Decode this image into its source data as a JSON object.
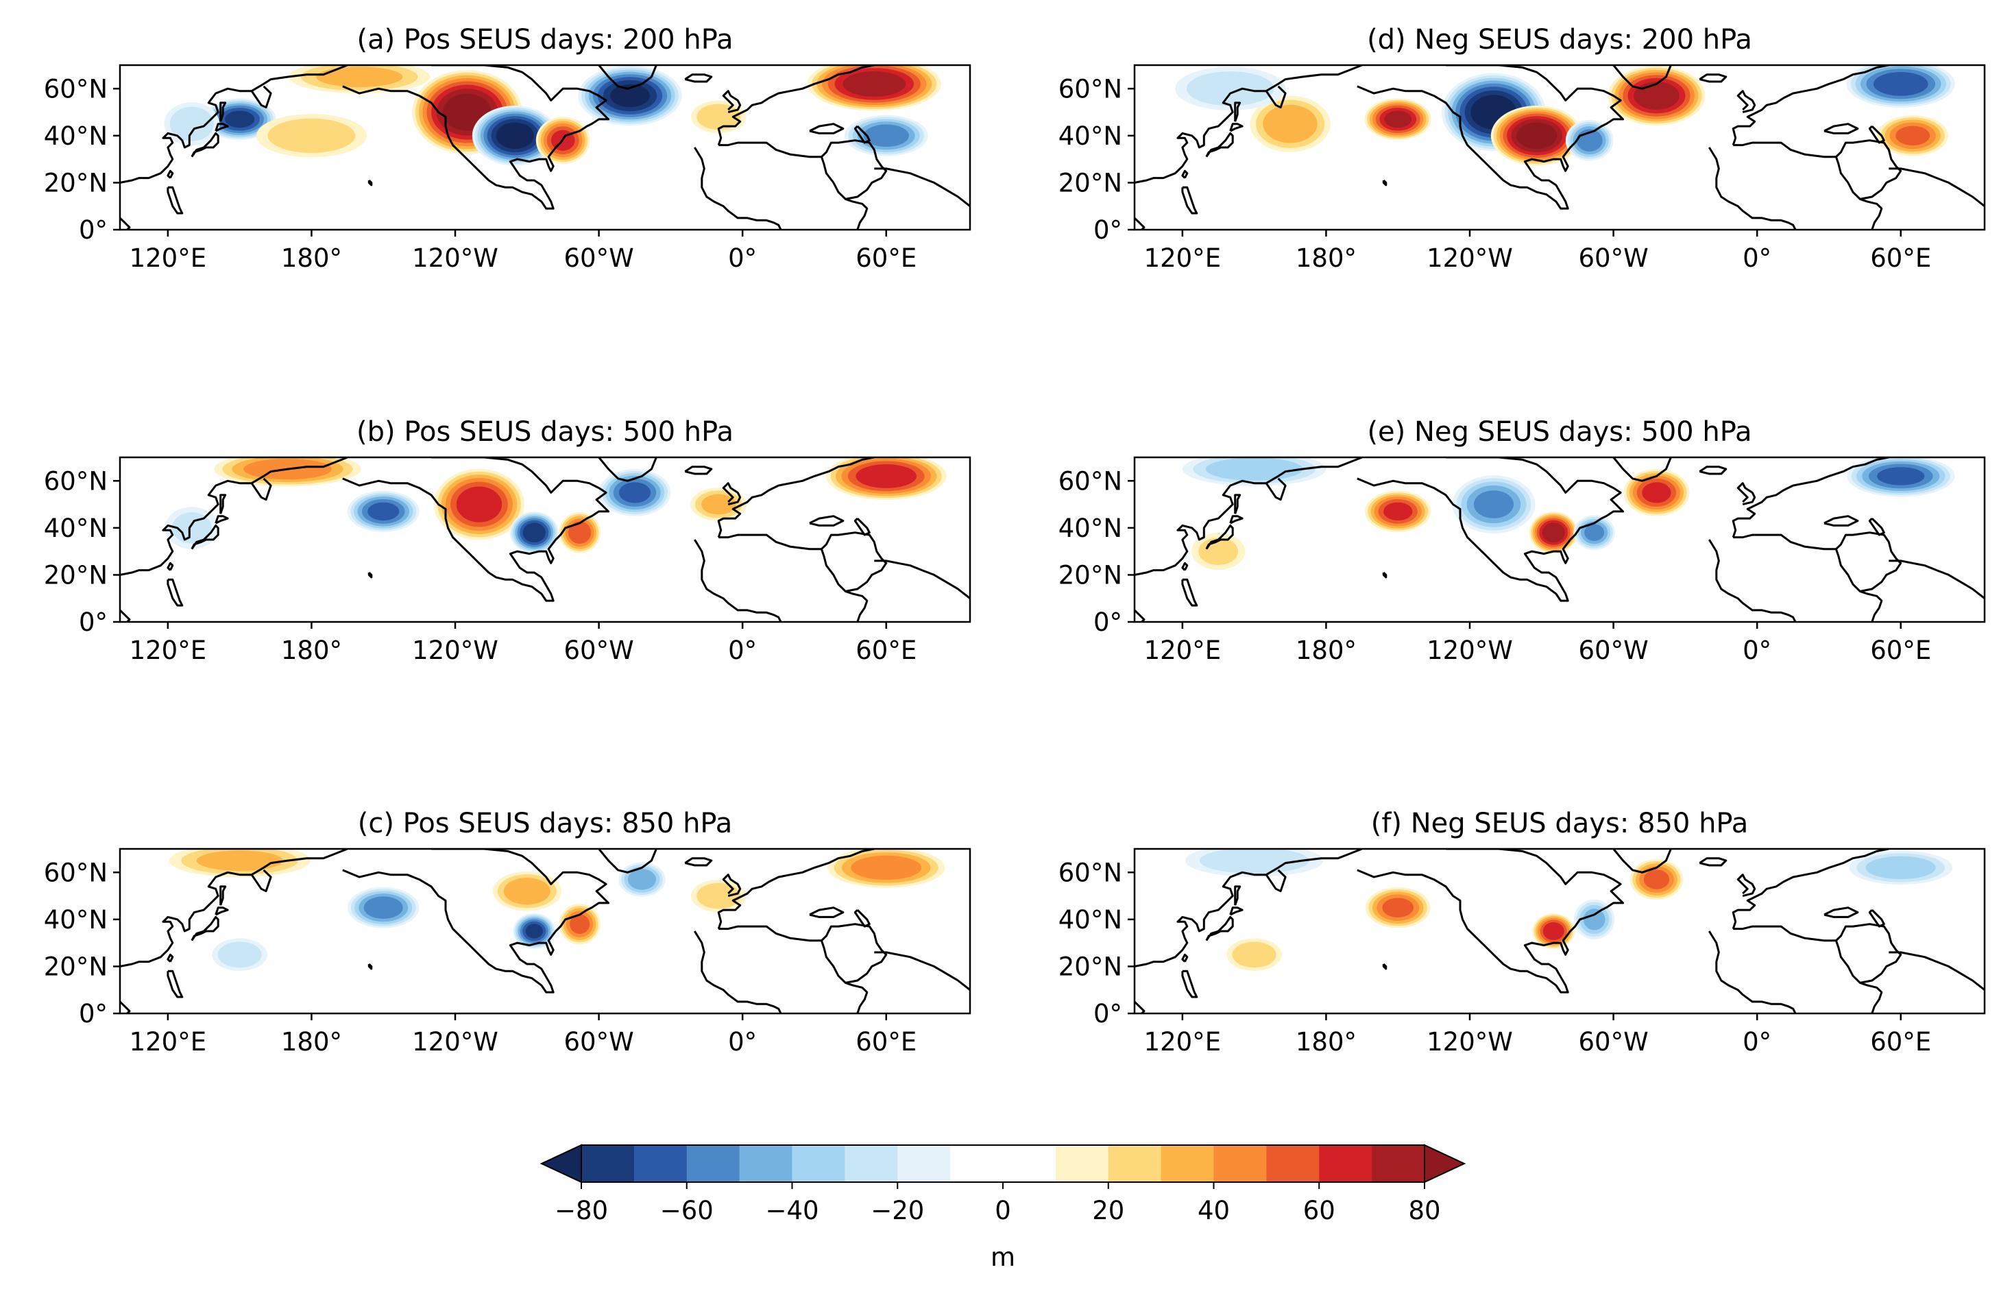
{
  "chart_data": {
    "type": "heatmap",
    "description_units": "m",
    "shared_axes": {
      "x_ticks": [
        "120°E",
        "180°",
        "120°W",
        "60°W",
        "0°",
        "60°E"
      ],
      "x_tick_lon": [
        120,
        180,
        240,
        300,
        360,
        420
      ],
      "y_ticks": [
        "0°",
        "20°N",
        "40°N",
        "60°N"
      ],
      "y_tick_lat": [
        0,
        20,
        40,
        60
      ],
      "lon_range": [
        100,
        455
      ],
      "lat_range": [
        0,
        70
      ]
    },
    "panels": [
      {
        "id": "a",
        "title": "(a) Pos SEUS days: 200 hPa",
        "anomalies": [
          {
            "lon": 150,
            "lat": 47,
            "value": -70,
            "rx": 12,
            "ry": 7
          },
          {
            "lon": 245,
            "lat": 50,
            "value": 85,
            "rx": 18,
            "ry": 14
          },
          {
            "lon": 265,
            "lat": 40,
            "value": -85,
            "rx": 14,
            "ry": 10
          },
          {
            "lon": 285,
            "lat": 38,
            "value": 60,
            "rx": 9,
            "ry": 8
          },
          {
            "lon": 313,
            "lat": 57,
            "value": -80,
            "rx": 17,
            "ry": 10
          },
          {
            "lon": 415,
            "lat": 62,
            "value": 75,
            "rx": 22,
            "ry": 9
          },
          {
            "lon": 420,
            "lat": 40,
            "value": -55,
            "rx": 14,
            "ry": 7
          },
          {
            "lon": 180,
            "lat": 40,
            "value": 25,
            "rx": 20,
            "ry": 8
          },
          {
            "lon": 130,
            "lat": 45,
            "value": -25,
            "rx": 10,
            "ry": 8
          },
          {
            "lon": 350,
            "lat": 48,
            "value": 25,
            "rx": 10,
            "ry": 6
          },
          {
            "lon": 200,
            "lat": 65,
            "value": 30,
            "rx": 25,
            "ry": 6
          }
        ]
      },
      {
        "id": "b",
        "title": "(b) Pos SEUS days: 500 hPa",
        "anomalies": [
          {
            "lon": 210,
            "lat": 47,
            "value": -60,
            "rx": 12,
            "ry": 7
          },
          {
            "lon": 250,
            "lat": 50,
            "value": 65,
            "rx": 15,
            "ry": 12
          },
          {
            "lon": 273,
            "lat": 38,
            "value": -75,
            "rx": 8,
            "ry": 7
          },
          {
            "lon": 292,
            "lat": 38,
            "value": 55,
            "rx": 7,
            "ry": 7
          },
          {
            "lon": 315,
            "lat": 55,
            "value": -60,
            "rx": 12,
            "ry": 8
          },
          {
            "lon": 420,
            "lat": 62,
            "value": 65,
            "rx": 20,
            "ry": 8
          },
          {
            "lon": 350,
            "lat": 50,
            "value": 30,
            "rx": 10,
            "ry": 6
          },
          {
            "lon": 170,
            "lat": 65,
            "value": 45,
            "rx": 25,
            "ry": 6
          },
          {
            "lon": 130,
            "lat": 40,
            "value": -20,
            "rx": 10,
            "ry": 8
          }
        ]
      },
      {
        "id": "c",
        "title": "(c) Pos SEUS days: 850 hPa",
        "anomalies": [
          {
            "lon": 210,
            "lat": 45,
            "value": -55,
            "rx": 12,
            "ry": 7
          },
          {
            "lon": 273,
            "lat": 35,
            "value": -70,
            "rx": 7,
            "ry": 6
          },
          {
            "lon": 292,
            "lat": 38,
            "value": 50,
            "rx": 7,
            "ry": 7
          },
          {
            "lon": 270,
            "lat": 52,
            "value": 35,
            "rx": 12,
            "ry": 7
          },
          {
            "lon": 318,
            "lat": 57,
            "value": -45,
            "rx": 8,
            "ry": 6
          },
          {
            "lon": 420,
            "lat": 62,
            "value": 45,
            "rx": 20,
            "ry": 7
          },
          {
            "lon": 350,
            "lat": 50,
            "value": 25,
            "rx": 10,
            "ry": 6
          },
          {
            "lon": 150,
            "lat": 25,
            "value": -25,
            "rx": 10,
            "ry": 6
          },
          {
            "lon": 150,
            "lat": 65,
            "value": 30,
            "rx": 25,
            "ry": 6
          }
        ]
      },
      {
        "id": "d",
        "title": "(d) Neg SEUS days: 200 hPa",
        "anomalies": [
          {
            "lon": 210,
            "lat": 47,
            "value": 70,
            "rx": 11,
            "ry": 7
          },
          {
            "lon": 250,
            "lat": 50,
            "value": -85,
            "rx": 17,
            "ry": 13
          },
          {
            "lon": 268,
            "lat": 40,
            "value": 85,
            "rx": 15,
            "ry": 10
          },
          {
            "lon": 290,
            "lat": 38,
            "value": -55,
            "rx": 8,
            "ry": 7
          },
          {
            "lon": 318,
            "lat": 57,
            "value": 75,
            "rx": 16,
            "ry": 10
          },
          {
            "lon": 420,
            "lat": 62,
            "value": -65,
            "rx": 18,
            "ry": 8
          },
          {
            "lon": 425,
            "lat": 40,
            "value": 50,
            "rx": 12,
            "ry": 7
          },
          {
            "lon": 165,
            "lat": 45,
            "value": 35,
            "rx": 14,
            "ry": 10
          },
          {
            "lon": 140,
            "lat": 60,
            "value": -25,
            "rx": 20,
            "ry": 8
          }
        ]
      },
      {
        "id": "e",
        "title": "(e) Neg SEUS days: 500 hPa",
        "anomalies": [
          {
            "lon": 210,
            "lat": 47,
            "value": 60,
            "rx": 11,
            "ry": 7
          },
          {
            "lon": 250,
            "lat": 50,
            "value": -50,
            "rx": 14,
            "ry": 10
          },
          {
            "lon": 275,
            "lat": 38,
            "value": 75,
            "rx": 8,
            "ry": 7
          },
          {
            "lon": 292,
            "lat": 38,
            "value": -50,
            "rx": 7,
            "ry": 6
          },
          {
            "lon": 318,
            "lat": 55,
            "value": 60,
            "rx": 11,
            "ry": 8
          },
          {
            "lon": 420,
            "lat": 62,
            "value": -60,
            "rx": 18,
            "ry": 7
          },
          {
            "lon": 150,
            "lat": 65,
            "value": -35,
            "rx": 25,
            "ry": 6
          },
          {
            "lon": 135,
            "lat": 30,
            "value": 20,
            "rx": 10,
            "ry": 7
          }
        ]
      },
      {
        "id": "f",
        "title": "(f) Neg SEUS days: 850 hPa",
        "anomalies": [
          {
            "lon": 210,
            "lat": 45,
            "value": 50,
            "rx": 11,
            "ry": 7
          },
          {
            "lon": 275,
            "lat": 35,
            "value": 65,
            "rx": 7,
            "ry": 6
          },
          {
            "lon": 292,
            "lat": 40,
            "value": -40,
            "rx": 7,
            "ry": 7
          },
          {
            "lon": 318,
            "lat": 57,
            "value": 50,
            "rx": 9,
            "ry": 7
          },
          {
            "lon": 420,
            "lat": 62,
            "value": -35,
            "rx": 18,
            "ry": 6
          },
          {
            "lon": 150,
            "lat": 25,
            "value": 25,
            "rx": 10,
            "ry": 6
          },
          {
            "lon": 150,
            "lat": 65,
            "value": -25,
            "rx": 25,
            "ry": 6
          }
        ]
      }
    ],
    "colorbar": {
      "label": "m",
      "ticks": [
        "−80",
        "−60",
        "−40",
        "−20",
        "0",
        "20",
        "40",
        "60",
        "80"
      ],
      "tick_values": [
        -80,
        -60,
        -40,
        -20,
        0,
        20,
        40,
        60,
        80
      ],
      "levels": [
        -80,
        -70,
        -60,
        -50,
        -40,
        -30,
        -20,
        -10,
        10,
        20,
        30,
        40,
        50,
        60,
        70,
        80
      ],
      "colors": [
        "#1a3b7a",
        "#2b5aa8",
        "#4a88c7",
        "#74b2e0",
        "#a3d4f2",
        "#c8e6f6",
        "#e6f3fb",
        "#ffffff",
        "#fff3c8",
        "#fed97c",
        "#fdb446",
        "#f98c35",
        "#eb5a2b",
        "#d42027",
        "#a71d24"
      ],
      "under_color": "#14275a",
      "over_color": "#8e1a20"
    }
  }
}
